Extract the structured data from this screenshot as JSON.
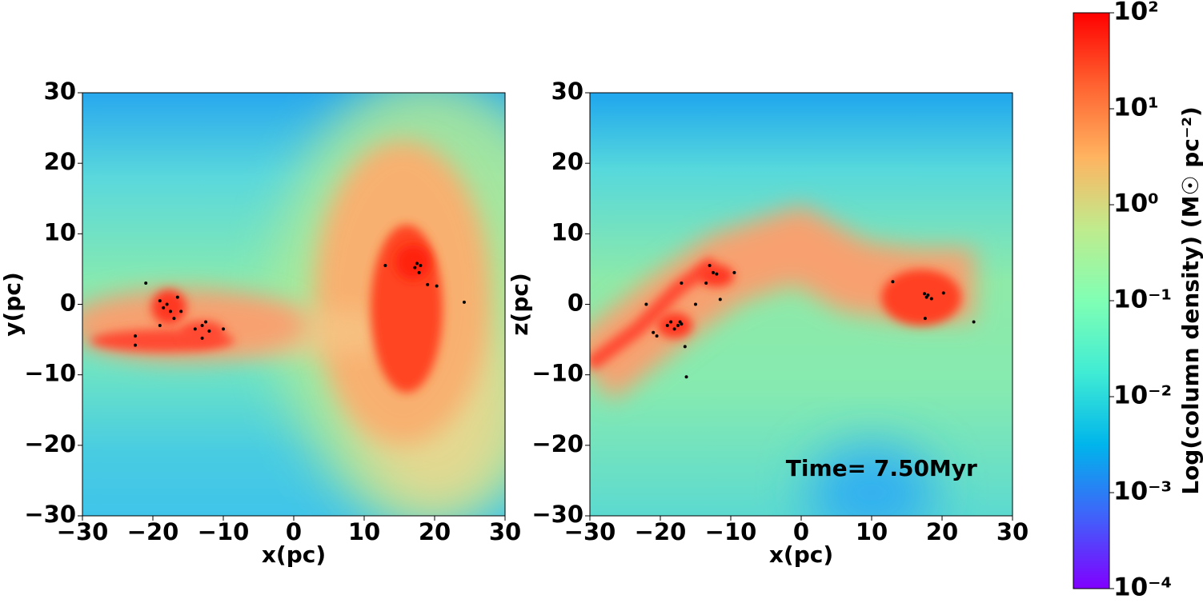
{
  "chart_data": [
    {
      "type": "scatter",
      "xlabel": "x(pc)",
      "ylabel": "y(pc)",
      "xlim": [
        -30,
        30
      ],
      "ylim": [
        -30,
        30
      ],
      "xticks": [
        {
          "value": -30,
          "label": "−30"
        },
        {
          "value": -20,
          "label": "−20"
        },
        {
          "value": -10,
          "label": "−10"
        },
        0,
        10,
        20,
        30
      ],
      "yticks": [
        {
          "value": -30,
          "label": "−30"
        },
        {
          "value": -20,
          "label": "−20"
        },
        {
          "value": -10,
          "label": "−10"
        },
        0,
        10,
        20,
        30
      ],
      "series": [
        {
          "color": "#000000",
          "x": [
            -21,
            -19,
            -18.5,
            -18,
            -17.5,
            -17,
            -16,
            -19,
            -22.5,
            -22.5,
            -13,
            -12.5,
            -14,
            -12,
            -10,
            -13,
            13,
            17.5,
            18,
            17.2,
            19,
            20.3,
            24.2,
            17.8,
            -16.5
          ],
          "y": [
            3,
            0.5,
            -0.5,
            0,
            -1,
            -2,
            -1,
            -3,
            -4.5,
            -5.8,
            -3,
            -2.5,
            -3.5,
            -3.8,
            -3.5,
            -4.8,
            5.5,
            5.8,
            5.5,
            5.2,
            2.8,
            2.6,
            0.3,
            4.5,
            1
          ]
        }
      ]
    },
    {
      "type": "scatter",
      "xlabel": "x(pc)",
      "ylabel": "z(pc)",
      "annotation": "Time= 7.50Myr",
      "xlim": [
        -30,
        30
      ],
      "ylim": [
        -30,
        30
      ],
      "xticks": [
        {
          "value": -30,
          "label": "−30"
        },
        {
          "value": -20,
          "label": "−20"
        },
        {
          "value": -10,
          "label": "−10"
        },
        0,
        10,
        20,
        30
      ],
      "yticks": [
        {
          "value": -30,
          "label": "−30"
        },
        {
          "value": -20,
          "label": "−20"
        },
        {
          "value": -10,
          "label": "−10"
        },
        0,
        10,
        20,
        30
      ],
      "series": [
        {
          "color": "#000000",
          "x": [
            -22,
            -21,
            -20.5,
            -19,
            -18.5,
            -18,
            -17.5,
            -17,
            -16.5,
            -16.3,
            -17,
            -15,
            -13.5,
            -13,
            -12.5,
            -12,
            -11.5,
            -9.5,
            13,
            17.5,
            17.8,
            18,
            17.6,
            18.5,
            20.2,
            24.5,
            -17.2
          ],
          "y": [
            0,
            -4,
            -4.5,
            -3,
            -2.5,
            -3.5,
            -3,
            -2.8,
            -6,
            -10.3,
            3,
            0,
            3,
            5.5,
            4.5,
            4.3,
            0.7,
            4.5,
            3.2,
            1.5,
            1,
            1.3,
            -2,
            0.8,
            1.6,
            -2.5,
            -2.5
          ]
        }
      ]
    },
    {
      "type": "colorbar",
      "ylabel": "Log(column density) (M☉ pc⁻²)",
      "scale": "log",
      "ylim": [
        0.0001,
        100
      ],
      "yticks": [
        {
          "value": 0.0001,
          "label": "10⁻⁴"
        },
        {
          "value": 0.001,
          "label": "10⁻³"
        },
        {
          "value": 0.01,
          "label": "10⁻²"
        },
        {
          "value": 0.1,
          "label": "10⁻¹"
        },
        {
          "value": 1,
          "label": "10⁰"
        },
        {
          "value": 10,
          "label": "10¹"
        },
        {
          "value": 100,
          "label": "10²"
        }
      ],
      "colors": [
        "#8000ff",
        "#4062fa",
        "#00b5eb",
        "#40ecd4",
        "#80ffb4",
        "#c0eb8d",
        "#ffb360",
        "#ff6230",
        "#ff0000"
      ]
    }
  ]
}
